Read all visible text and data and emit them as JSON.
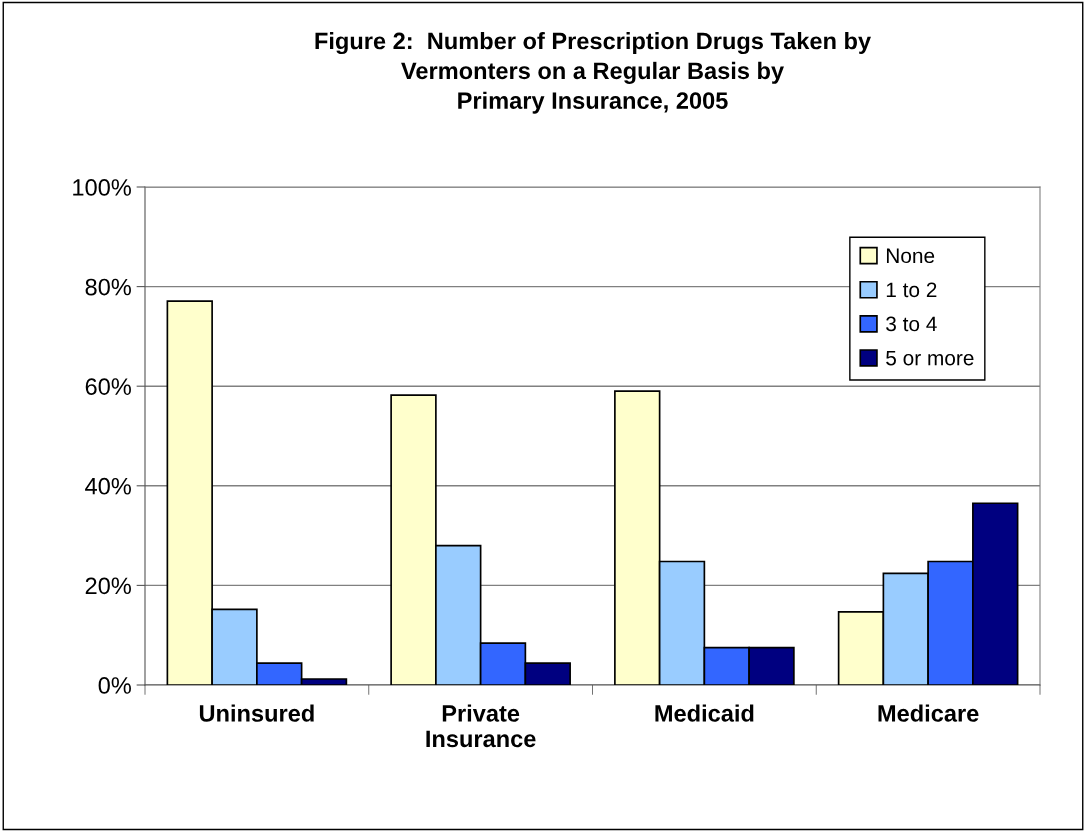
{
  "chart_data": {
    "type": "bar",
    "title": "Figure 2:  Number of Prescription Drugs Taken by\nVermonters on a Regular Basis by\nPrimary Insurance, 2005",
    "categories": [
      "Uninsured",
      "Private\nInsurance",
      "Medicaid",
      "Medicare"
    ],
    "series": [
      {
        "name": "None",
        "color": "#ffffcc",
        "values": [
          77.1,
          58.2,
          59.0,
          14.7
        ]
      },
      {
        "name": "1 to 2",
        "color": "#99ccff",
        "values": [
          15.2,
          28.0,
          24.8,
          22.4
        ]
      },
      {
        "name": "3 to 4",
        "color": "#3366ff",
        "values": [
          4.4,
          8.4,
          7.5,
          24.8
        ]
      },
      {
        "name": "5 or more",
        "color": "#000080",
        "values": [
          1.2,
          4.4,
          7.5,
          36.5
        ]
      }
    ],
    "ylim": [
      0,
      100
    ],
    "yticks": [
      {
        "value": 0,
        "label": "0%"
      },
      {
        "value": 20,
        "label": "20%"
      },
      {
        "value": 40,
        "label": "40%"
      },
      {
        "value": 60,
        "label": "60%"
      },
      {
        "value": 80,
        "label": "80%"
      },
      {
        "value": 100,
        "label": "100%"
      }
    ],
    "grid": "y",
    "legend": "top right"
  }
}
